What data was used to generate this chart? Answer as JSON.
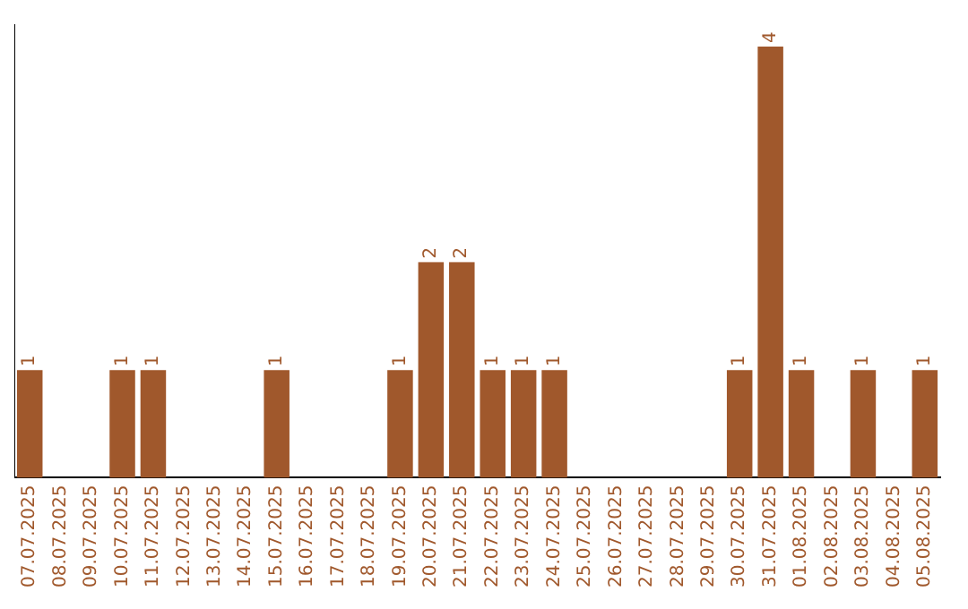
{
  "chart_data": {
    "type": "bar",
    "categories": [
      "07.07.2025",
      "08.07.2025",
      "09.07.2025",
      "10.07.2025",
      "11.07.2025",
      "12.07.2025",
      "13.07.2025",
      "14.07.2025",
      "15.07.2025",
      "16.07.2025",
      "17.07.2025",
      "18.07.2025",
      "19.07.2025",
      "20.07.2025",
      "21.07.2025",
      "22.07.2025",
      "23.07.2025",
      "24.07.2025",
      "25.07.2025",
      "26.07.2025",
      "27.07.2025",
      "28.07.2025",
      "29.07.2025",
      "30.07.2025",
      "31.07.2025",
      "01.08.2025",
      "02.08.2025",
      "03.08.2025",
      "04.08.2025",
      "05.08.2025"
    ],
    "values": [
      1,
      0,
      0,
      1,
      1,
      0,
      0,
      0,
      1,
      0,
      0,
      0,
      1,
      2,
      2,
      1,
      1,
      1,
      0,
      0,
      0,
      0,
      0,
      1,
      4,
      1,
      0,
      1,
      0,
      1
    ],
    "value_labels": [
      "1",
      null,
      null,
      "1",
      "1",
      null,
      null,
      null,
      "1",
      null,
      null,
      null,
      "1",
      "2",
      "2",
      "1",
      "1",
      "1",
      null,
      null,
      null,
      null,
      null,
      "1",
      "4",
      "1",
      null,
      "1",
      null,
      "1"
    ],
    "color": "#a0582c",
    "ylim": [
      0,
      4.2
    ],
    "tick_labels": "x",
    "grid": false,
    "legend": false
  }
}
